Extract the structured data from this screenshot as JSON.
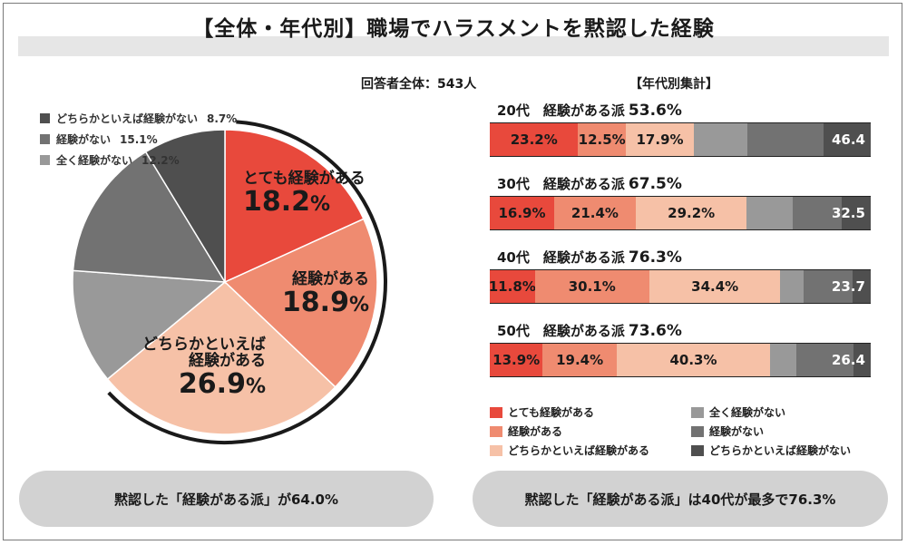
{
  "title": "【全体・年代別】職場でハラスメントを黙認した経験",
  "respondents": "回答者全体：543人",
  "aggregation_label": "【年代別集計】",
  "colors": {
    "very": "#e8493c",
    "experienced": "#ef8b70",
    "somewhat": "#f6c1a7",
    "none_at_all": "#999999",
    "none": "#727272",
    "somewhat_none": "#4f4f4f"
  },
  "pie": {
    "legend": [
      {
        "label": "どちらかといえば経験がない",
        "pct": "8.7%"
      },
      {
        "label": "経験がない",
        "pct": "15.1%"
      },
      {
        "label": "全く経験がない",
        "pct": "12.2%"
      }
    ],
    "labels": {
      "very_name": "とても経験がある",
      "very_value": "18.2",
      "exp_name": "経験がある",
      "exp_value": "18.9",
      "some_name1": "どちらかといえば",
      "some_name2": "経験がある",
      "some_value": "26.9",
      "percent_sign": "%"
    }
  },
  "bar_legend": {
    "very": "とても経験がある",
    "experienced": "経験がある",
    "somewhat": "どちらかといえば経験がある",
    "none_at_all": "全く経験がない",
    "none": "経験がない",
    "somewhat_none": "どちらかといえば経験がない"
  },
  "bars": [
    {
      "age": "20代",
      "group_label": "経験がある派",
      "group_pct": "53.6%",
      "labels": [
        "23.2%",
        "12.5%",
        "17.9%",
        "",
        "46.4"
      ]
    },
    {
      "age": "30代",
      "group_label": "経験がある派",
      "group_pct": "67.5%",
      "labels": [
        "16.9%",
        "21.4%",
        "29.2%",
        "",
        "32.5"
      ]
    },
    {
      "age": "40代",
      "group_label": "経験がある派",
      "group_pct": "76.3%",
      "labels": [
        "11.8%",
        "30.1%",
        "34.4%",
        "",
        "23.7"
      ]
    },
    {
      "age": "50代",
      "group_label": "経験がある派",
      "group_pct": "73.6%",
      "labels": [
        "13.9%",
        "19.4%",
        "40.3%",
        "",
        "26.4"
      ]
    }
  ],
  "footer": {
    "left": "黙認した「経験がある派」が64.0%",
    "right": "黙認した「経験がある派」は40代が最多で76.3%"
  },
  "chart_data": [
    {
      "type": "pie",
      "title": "",
      "categories": [
        "とても経験がある",
        "経験がある",
        "どちらかといえば経験がある",
        "全く経験がない",
        "経験がない",
        "どちらかといえば経験がない"
      ],
      "values": [
        18.2,
        18.9,
        26.9,
        12.2,
        15.1,
        8.7
      ],
      "legend": "top-left"
    },
    {
      "type": "bar",
      "orientation": "horizontal-stacked-100",
      "title": "",
      "categories": [
        "20代",
        "30代",
        "40代",
        "50代"
      ],
      "series": [
        {
          "name": "とても経験がある",
          "values": [
            23.2,
            16.9,
            11.8,
            13.9
          ]
        },
        {
          "name": "経験がある",
          "values": [
            12.5,
            21.4,
            30.1,
            19.4
          ]
        },
        {
          "name": "どちらかといえば経験がある",
          "values": [
            17.9,
            29.2,
            34.4,
            40.3
          ]
        },
        {
          "name": "全く経験がない",
          "values": [
            14.0,
            12.0,
            6.0,
            7.0
          ]
        },
        {
          "name": "経験がない",
          "values": [
            20.0,
            13.0,
            13.0,
            15.0
          ]
        },
        {
          "name": "どちらかといえば経験がない",
          "values": [
            12.4,
            7.5,
            4.7,
            4.4
          ]
        }
      ],
      "xlim": [
        0,
        100
      ],
      "legend": "bottom"
    }
  ]
}
